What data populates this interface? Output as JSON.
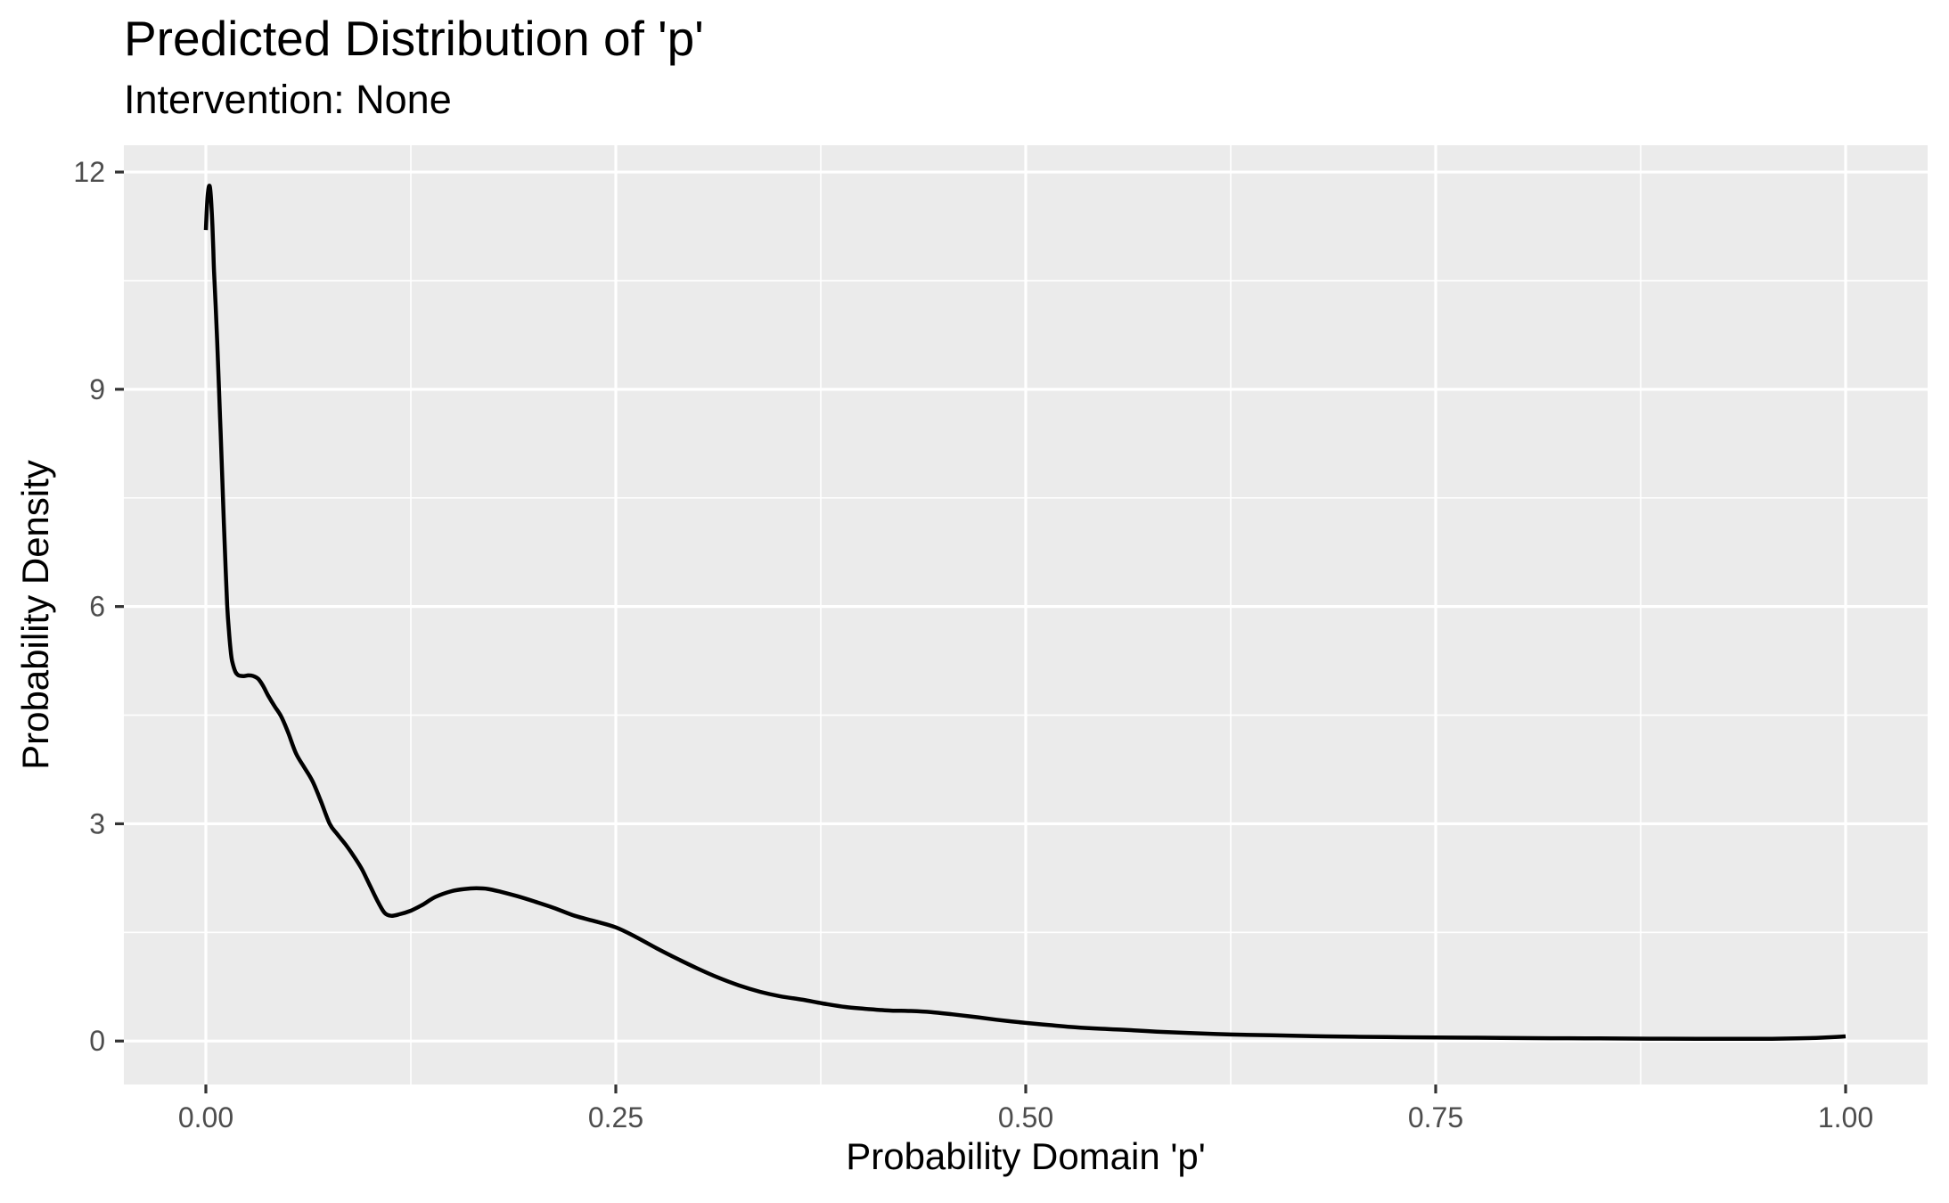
{
  "chart_data": {
    "type": "line",
    "title": "Predicted Distribution of 'p'",
    "subtitle": "Intervention: None",
    "xlabel": "Probability Domain 'p'",
    "ylabel": "Probability Density",
    "xlim": [
      -0.05,
      1.05
    ],
    "ylim": [
      -0.6,
      12.37
    ],
    "grid": true,
    "legend": "none",
    "x_ticks": {
      "values": [
        0,
        0.25,
        0.5,
        0.75,
        1.0
      ],
      "labels": [
        "0.00",
        "0.25",
        "0.50",
        "0.75",
        "1.00"
      ]
    },
    "y_ticks": {
      "values": [
        0,
        3,
        6,
        9,
        12
      ],
      "labels": [
        "0",
        "3",
        "6",
        "9",
        "12"
      ]
    },
    "x_minor": [
      0.125,
      0.375,
      0.625,
      0.875
    ],
    "y_minor": [
      1.5,
      4.5,
      7.5,
      10.5
    ],
    "series": [
      {
        "name": "density",
        "x": [
          0,
          0.0005,
          0.001,
          0.0015,
          0.002,
          0.0025,
          0.003,
          0.0035,
          0.004,
          0.0045,
          0.005,
          0.006,
          0.007,
          0.008,
          0.009,
          0.01,
          0.011,
          0.012,
          0.013,
          0.014,
          0.015,
          0.016,
          0.018,
          0.02,
          0.023,
          0.026,
          0.029,
          0.032,
          0.035,
          0.038,
          0.042,
          0.046,
          0.05,
          0.055,
          0.06,
          0.065,
          0.07,
          0.0755,
          0.08,
          0.085,
          0.09,
          0.095,
          0.1,
          0.105,
          0.109,
          0.113,
          0.118,
          0.125,
          0.132,
          0.14,
          0.15,
          0.158,
          0.165,
          0.172,
          0.18,
          0.19,
          0.2,
          0.212,
          0.225,
          0.238,
          0.25,
          0.262,
          0.275,
          0.288,
          0.3,
          0.312,
          0.325,
          0.338,
          0.35,
          0.364,
          0.376,
          0.39,
          0.405,
          0.418,
          0.43,
          0.442,
          0.455,
          0.468,
          0.482,
          0.5,
          0.515,
          0.53,
          0.545,
          0.56,
          0.58,
          0.6,
          0.625,
          0.65,
          0.675,
          0.7,
          0.73,
          0.76,
          0.79,
          0.82,
          0.85,
          0.88,
          0.91,
          0.935,
          0.955,
          0.97,
          0.982,
          0.992,
          1
        ],
        "y": [
          11.2,
          11.45,
          11.64,
          11.76,
          11.81,
          11.79,
          11.68,
          11.5,
          11.25,
          10.95,
          10.62,
          10.15,
          9.6,
          9.02,
          8.4,
          7.78,
          7.15,
          6.55,
          6.02,
          5.68,
          5.42,
          5.25,
          5.1,
          5.05,
          5.04,
          5.05,
          5.04,
          5,
          4.9,
          4.77,
          4.62,
          4.48,
          4.27,
          3.97,
          3.78,
          3.59,
          3.32,
          3,
          2.86,
          2.72,
          2.56,
          2.38,
          2.15,
          1.92,
          1.77,
          1.73,
          1.75,
          1.8,
          1.88,
          1.99,
          2.07,
          2.1,
          2.11,
          2.1,
          2.06,
          2,
          1.93,
          1.84,
          1.73,
          1.65,
          1.57,
          1.44,
          1.28,
          1.13,
          1,
          0.88,
          0.77,
          0.68,
          0.62,
          0.57,
          0.52,
          0.47,
          0.44,
          0.42,
          0.415,
          0.4,
          0.37,
          0.335,
          0.295,
          0.25,
          0.22,
          0.19,
          0.17,
          0.155,
          0.13,
          0.11,
          0.09,
          0.08,
          0.068,
          0.06,
          0.052,
          0.047,
          0.043,
          0.039,
          0.036,
          0.033,
          0.031,
          0.03,
          0.031,
          0.036,
          0.044,
          0.054,
          0.064
        ]
      }
    ]
  },
  "colors": {
    "background": "#FFFFFF",
    "panel_bg": "#EBEBEB",
    "grid": "#FFFFFF",
    "curve": "#000000",
    "tick_label": "#4D4D4D",
    "tick_mark": "#333333",
    "text": "#000000"
  }
}
